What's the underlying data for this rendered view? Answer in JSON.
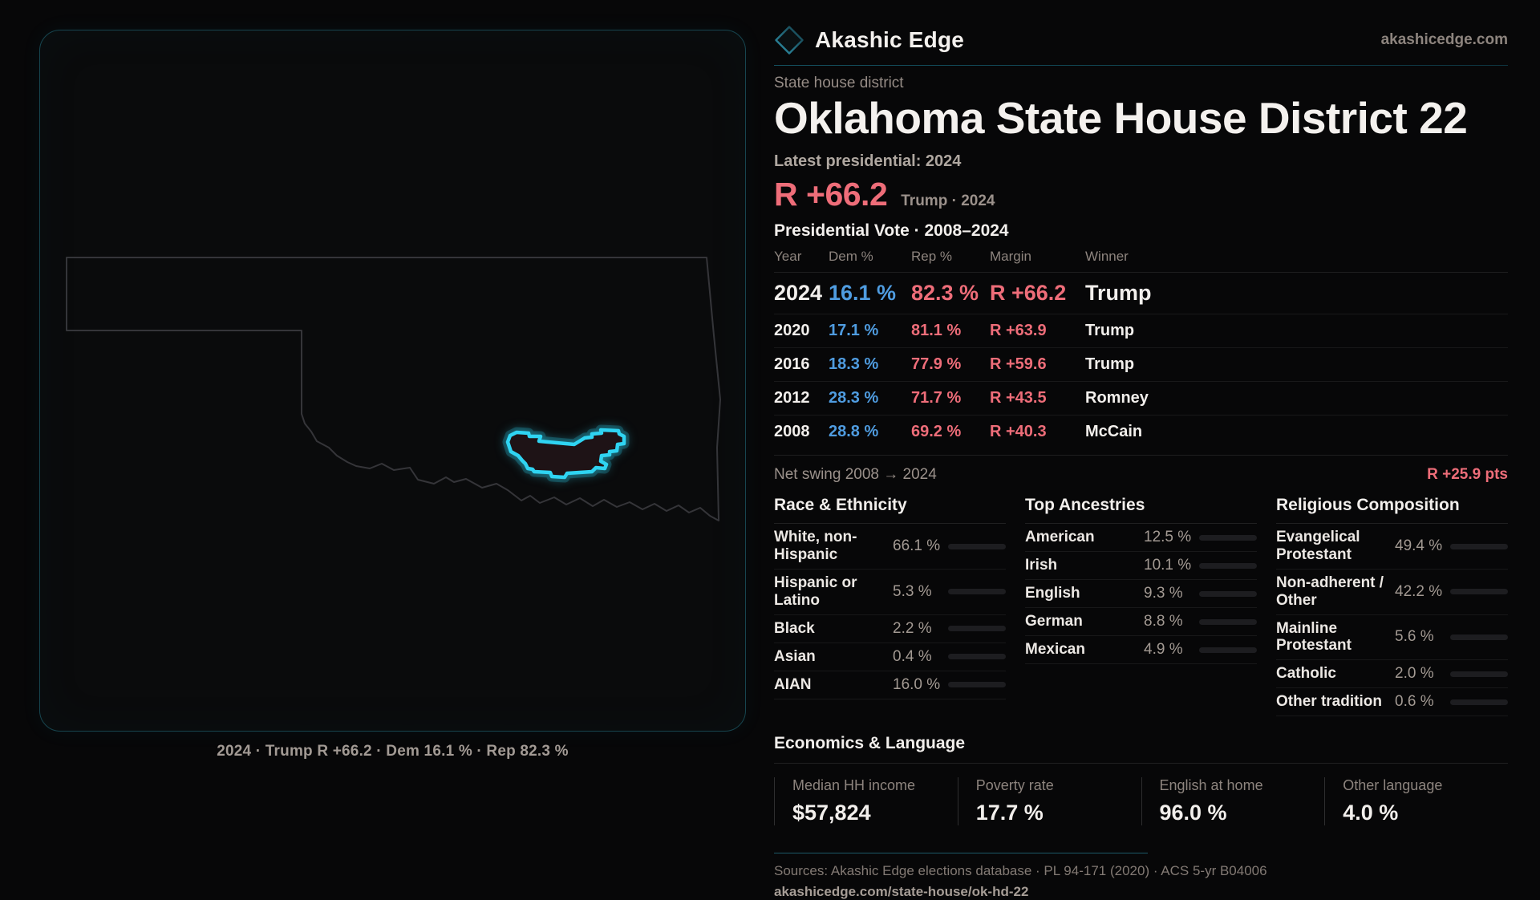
{
  "brand": {
    "name": "Akashic Edge",
    "site": "akashicedge.com",
    "logo": "diamond-icon"
  },
  "page": {
    "kicker": "State house district",
    "title": "Oklahoma State House District 22"
  },
  "map": {
    "caption": "2024 · Trump R +66.2 · Dem 16.1 % · Rep 82.3 %",
    "state": "Oklahoma",
    "highlight_color": "#2fd4f2"
  },
  "latest": {
    "label": "Latest presidential: 2024",
    "margin": "R +66.2",
    "note": "Trump · 2024",
    "margin_color": "#ee6d79"
  },
  "presidential_vote": {
    "title": "Presidential Vote · 2008–2024",
    "columns": [
      "Year",
      "Dem %",
      "Rep %",
      "Margin",
      "Winner"
    ],
    "rows": [
      {
        "year": "2024",
        "dem": "16.1 %",
        "rep": "82.3 %",
        "margin": "R +66.2",
        "winner": "Trump",
        "featured": true
      },
      {
        "year": "2020",
        "dem": "17.1 %",
        "rep": "81.1 %",
        "margin": "R +63.9",
        "winner": "Trump"
      },
      {
        "year": "2016",
        "dem": "18.3 %",
        "rep": "77.9 %",
        "margin": "R +59.6",
        "winner": "Trump"
      },
      {
        "year": "2012",
        "dem": "28.3 %",
        "rep": "71.7 %",
        "margin": "R +43.5",
        "winner": "Romney"
      },
      {
        "year": "2008",
        "dem": "28.8 %",
        "rep": "69.2 %",
        "margin": "R +40.3",
        "winner": "McCain"
      }
    ],
    "net_swing_label": "Net swing 2008 → 2024",
    "net_swing_value": "R +25.9 pts"
  },
  "demographics": {
    "sections": [
      {
        "title": "Race & Ethnicity",
        "rows": [
          {
            "label": "White, non-Hispanic",
            "value": "66.1 %",
            "pct": 66.1,
            "color": "#9fb4d2"
          },
          {
            "label": "Hispanic or Latino",
            "value": "5.3 %",
            "pct": 5.3,
            "color": "#d98e2e"
          },
          {
            "label": "Black",
            "value": "2.2 %",
            "pct": 2.2,
            "color": "#8d7ae6"
          },
          {
            "label": "Asian",
            "value": "0.4 %",
            "pct": 0.4,
            "color": "#9fb4d2"
          },
          {
            "label": "AIAN",
            "value": "16.0 %",
            "pct": 16.0,
            "color": "#d5862a"
          }
        ]
      },
      {
        "title": "Top Ancestries",
        "rows": [
          {
            "label": "American",
            "value": "12.5 %",
            "pct": 12.5,
            "color": "#8ea6c4"
          },
          {
            "label": "Irish",
            "value": "10.1 %",
            "pct": 10.1,
            "color": "#8ea6c4"
          },
          {
            "label": "English",
            "value": "9.3 %",
            "pct": 9.3,
            "color": "#8ea6c4"
          },
          {
            "label": "German",
            "value": "8.8 %",
            "pct": 8.8,
            "color": "#8ea6c4"
          },
          {
            "label": "Mexican",
            "value": "4.9 %",
            "pct": 4.9,
            "color": "#e7a61a"
          }
        ]
      },
      {
        "title": "Religious Composition",
        "rows": [
          {
            "label": "Evangelical Protestant",
            "value": "49.4 %",
            "pct": 49.4,
            "color": "#e66570"
          },
          {
            "label": "Non-adherent / Other",
            "value": "42.2 %",
            "pct": 42.2,
            "color": "#59626f"
          },
          {
            "label": "Mainline Protestant",
            "value": "5.6 %",
            "pct": 5.6,
            "color": "#2e7de6"
          },
          {
            "label": "Catholic",
            "value": "2.0 %",
            "pct": 2.0,
            "color": "#d9ae3e"
          },
          {
            "label": "Other tradition",
            "value": "0.6 %",
            "pct": 0.6,
            "color": "#8a8178"
          }
        ]
      }
    ]
  },
  "economics": {
    "title": "Economics & Language",
    "stats": [
      {
        "label": "Median HH income",
        "value": "$57,824"
      },
      {
        "label": "Poverty rate",
        "value": "17.7 %"
      },
      {
        "label": "English at home",
        "value": "96.0 %"
      },
      {
        "label": "Other language",
        "value": "4.0 %"
      }
    ]
  },
  "footer": {
    "sources": "Sources: Akashic Edge elections database · PL 94-171 (2020) · ACS 5-yr B04006",
    "url": "akashicedge.com/state-house/ok-hd-22"
  },
  "chart_data": [
    {
      "type": "table",
      "title": "Presidential Vote · 2008–2024",
      "columns": [
        "Year",
        "Dem %",
        "Rep %",
        "Margin",
        "Winner"
      ],
      "rows": [
        [
          2024,
          16.1,
          82.3,
          "R +66.2",
          "Trump"
        ],
        [
          2020,
          17.1,
          81.1,
          "R +63.9",
          "Trump"
        ],
        [
          2016,
          18.3,
          77.9,
          "R +59.6",
          "Trump"
        ],
        [
          2012,
          28.3,
          71.7,
          "R +43.5",
          "Romney"
        ],
        [
          2008,
          28.8,
          69.2,
          "R +40.3",
          "McCain"
        ]
      ],
      "annotation": "Net swing 2008 → 2024: R +25.9 pts"
    },
    {
      "type": "bar",
      "title": "Race & Ethnicity",
      "categories": [
        "White, non-Hispanic",
        "Hispanic or Latino",
        "Black",
        "Asian",
        "AIAN"
      ],
      "values": [
        66.1,
        5.3,
        2.2,
        0.4,
        16.0
      ],
      "xlabel": "",
      "ylabel": "%",
      "ylim": [
        0,
        100
      ]
    },
    {
      "type": "bar",
      "title": "Top Ancestries",
      "categories": [
        "American",
        "Irish",
        "English",
        "German",
        "Mexican"
      ],
      "values": [
        12.5,
        10.1,
        9.3,
        8.8,
        4.9
      ],
      "xlabel": "",
      "ylabel": "%",
      "ylim": [
        0,
        100
      ]
    },
    {
      "type": "bar",
      "title": "Religious Composition",
      "categories": [
        "Evangelical Protestant",
        "Non-adherent / Other",
        "Mainline Protestant",
        "Catholic",
        "Other tradition"
      ],
      "values": [
        49.4,
        42.2,
        5.6,
        2.0,
        0.6
      ],
      "xlabel": "",
      "ylabel": "%",
      "ylim": [
        0,
        100
      ]
    },
    {
      "type": "table",
      "title": "Economics & Language",
      "columns": [
        "Median HH income",
        "Poverty rate",
        "English at home",
        "Other language"
      ],
      "rows": [
        [
          "$57,824",
          "17.7 %",
          "96.0 %",
          "4.0 %"
        ]
      ]
    }
  ]
}
